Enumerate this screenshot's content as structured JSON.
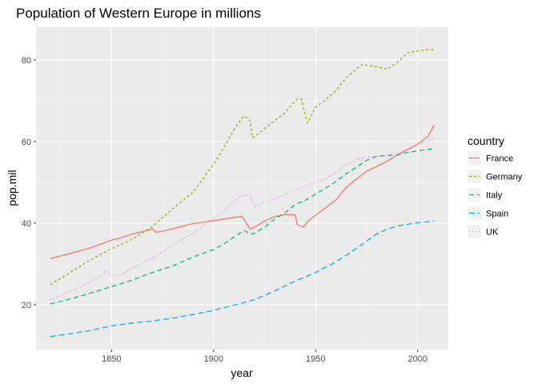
{
  "chart_data": {
    "type": "line",
    "title": "Population of Western Europe in millions",
    "xlabel": "year",
    "ylabel": "pop.mil",
    "xlim": [
      1813,
      2015
    ],
    "ylim": [
      9,
      88
    ],
    "x_ticks": [
      1850,
      1900,
      1950,
      2000
    ],
    "y_ticks": [
      20,
      40,
      60,
      80
    ],
    "grid": true,
    "legend": {
      "title": "country",
      "position": "right"
    },
    "series": [
      {
        "name": "France",
        "color": "#F8766D",
        "dash": "solid",
        "points": [
          [
            1820,
            31.3
          ],
          [
            1830,
            32.6
          ],
          [
            1840,
            34.0
          ],
          [
            1850,
            35.8
          ],
          [
            1855,
            36.5
          ],
          [
            1860,
            37.3
          ],
          [
            1866,
            38.0
          ],
          [
            1870,
            38.6
          ],
          [
            1872,
            37.7
          ],
          [
            1880,
            38.6
          ],
          [
            1890,
            39.9
          ],
          [
            1900,
            40.6
          ],
          [
            1905,
            41.0
          ],
          [
            1910,
            41.4
          ],
          [
            1914,
            41.6
          ],
          [
            1916,
            40.0
          ],
          [
            1918,
            38.5
          ],
          [
            1920,
            39.0
          ],
          [
            1925,
            40.5
          ],
          [
            1930,
            41.6
          ],
          [
            1935,
            42.1
          ],
          [
            1940,
            42.0
          ],
          [
            1941,
            39.6
          ],
          [
            1944,
            39.0
          ],
          [
            1946,
            40.3
          ],
          [
            1950,
            42.0
          ],
          [
            1955,
            43.8
          ],
          [
            1960,
            45.7
          ],
          [
            1965,
            48.8
          ],
          [
            1970,
            50.8
          ],
          [
            1975,
            52.7
          ],
          [
            1980,
            53.9
          ],
          [
            1985,
            55.2
          ],
          [
            1990,
            56.7
          ],
          [
            1995,
            58.0
          ],
          [
            2000,
            59.4
          ],
          [
            2005,
            61.2
          ],
          [
            2008,
            64.0
          ]
        ]
      },
      {
        "name": "Germany",
        "color": "#A3A500",
        "dash": "3,3",
        "points": [
          [
            1820,
            24.9
          ],
          [
            1830,
            28.0
          ],
          [
            1840,
            31.1
          ],
          [
            1850,
            33.7
          ],
          [
            1860,
            36.0
          ],
          [
            1870,
            39.2
          ],
          [
            1880,
            43.5
          ],
          [
            1890,
            47.6
          ],
          [
            1900,
            54.4
          ],
          [
            1905,
            58.5
          ],
          [
            1910,
            62.9
          ],
          [
            1913,
            65.1
          ],
          [
            1915,
            66.3
          ],
          [
            1918,
            65.0
          ],
          [
            1919,
            60.9
          ],
          [
            1922,
            61.9
          ],
          [
            1925,
            63.2
          ],
          [
            1930,
            65.1
          ],
          [
            1935,
            67.0
          ],
          [
            1938,
            68.9
          ],
          [
            1941,
            70.4
          ],
          [
            1943,
            70.4
          ],
          [
            1946,
            64.5
          ],
          [
            1950,
            68.4
          ],
          [
            1955,
            70.3
          ],
          [
            1960,
            72.5
          ],
          [
            1965,
            75.6
          ],
          [
            1970,
            77.8
          ],
          [
            1973,
            78.9
          ],
          [
            1975,
            78.7
          ],
          [
            1980,
            78.3
          ],
          [
            1985,
            77.7
          ],
          [
            1990,
            79.4
          ],
          [
            1995,
            81.7
          ],
          [
            2000,
            82.2
          ],
          [
            2005,
            82.5
          ],
          [
            2008,
            82.4
          ]
        ]
      },
      {
        "name": "Italy",
        "color": "#00BF7D",
        "dash": "6,4",
        "points": [
          [
            1820,
            20.2
          ],
          [
            1830,
            21.4
          ],
          [
            1840,
            22.9
          ],
          [
            1850,
            24.4
          ],
          [
            1860,
            26.0
          ],
          [
            1870,
            27.9
          ],
          [
            1880,
            29.5
          ],
          [
            1890,
            31.7
          ],
          [
            1900,
            33.5
          ],
          [
            1905,
            34.9
          ],
          [
            1910,
            36.6
          ],
          [
            1915,
            38.2
          ],
          [
            1918,
            37.3
          ],
          [
            1920,
            37.5
          ],
          [
            1925,
            39.0
          ],
          [
            1930,
            41.0
          ],
          [
            1935,
            42.5
          ],
          [
            1940,
            44.6
          ],
          [
            1945,
            45.6
          ],
          [
            1950,
            47.1
          ],
          [
            1955,
            48.6
          ],
          [
            1960,
            50.2
          ],
          [
            1965,
            52.1
          ],
          [
            1970,
            53.7
          ],
          [
            1975,
            55.4
          ],
          [
            1980,
            56.4
          ],
          [
            1985,
            56.6
          ],
          [
            1990,
            56.7
          ],
          [
            1995,
            57.3
          ],
          [
            2000,
            57.7
          ],
          [
            2005,
            58.1
          ],
          [
            2008,
            58.2
          ]
        ]
      },
      {
        "name": "Spain",
        "color": "#00B0F6",
        "dash": "7,4",
        "points": [
          [
            1820,
            12.2
          ],
          [
            1830,
            12.9
          ],
          [
            1840,
            13.7
          ],
          [
            1850,
            14.8
          ],
          [
            1860,
            15.5
          ],
          [
            1870,
            16.0
          ],
          [
            1880,
            16.7
          ],
          [
            1890,
            17.6
          ],
          [
            1900,
            18.6
          ],
          [
            1910,
            19.9
          ],
          [
            1920,
            21.2
          ],
          [
            1930,
            23.4
          ],
          [
            1940,
            25.8
          ],
          [
            1950,
            27.9
          ],
          [
            1960,
            30.5
          ],
          [
            1970,
            33.8
          ],
          [
            1975,
            35.6
          ],
          [
            1980,
            37.4
          ],
          [
            1985,
            38.5
          ],
          [
            1990,
            39.3
          ],
          [
            1995,
            39.7
          ],
          [
            2000,
            40.1
          ],
          [
            2008,
            40.5
          ]
        ]
      },
      {
        "name": "UK",
        "color": "#E76BF3",
        "dash": "1,3",
        "points": [
          [
            1820,
            21.2
          ],
          [
            1830,
            23.3
          ],
          [
            1840,
            25.7
          ],
          [
            1845,
            27.0
          ],
          [
            1847,
            28.3
          ],
          [
            1850,
            27.4
          ],
          [
            1852,
            27.1
          ],
          [
            1855,
            27.3
          ],
          [
            1860,
            28.9
          ],
          [
            1870,
            31.4
          ],
          [
            1880,
            34.6
          ],
          [
            1890,
            37.5
          ],
          [
            1900,
            41.2
          ],
          [
            1905,
            43.0
          ],
          [
            1910,
            45.2
          ],
          [
            1913,
            46.6
          ],
          [
            1918,
            46.9
          ],
          [
            1920,
            44.0
          ],
          [
            1925,
            45.1
          ],
          [
            1930,
            45.9
          ],
          [
            1935,
            46.9
          ],
          [
            1940,
            48.2
          ],
          [
            1945,
            49.1
          ],
          [
            1950,
            50.1
          ],
          [
            1955,
            50.9
          ],
          [
            1960,
            52.4
          ],
          [
            1965,
            54.4
          ],
          [
            1970,
            55.6
          ],
          [
            1975,
            56.2
          ],
          [
            1980,
            56.3
          ],
          [
            1985,
            56.6
          ],
          [
            1990,
            57.2
          ],
          [
            1995,
            58.0
          ],
          [
            2000,
            59.1
          ],
          [
            2005,
            60.2
          ],
          [
            2008,
            60.9
          ]
        ]
      }
    ]
  }
}
